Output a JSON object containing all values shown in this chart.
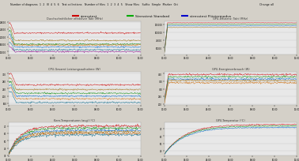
{
  "bg_color": "#d4d0c8",
  "toolbar_bg": "#ece9d8",
  "chart_bg": "#f0f0f0",
  "chart_plot_bg": "#e8e8e8",
  "legend_items": [
    {
      "label": "stresstest",
      "color": "#cc0000"
    },
    {
      "label": "Stresstest Standard",
      "color": "#00aa00"
    },
    {
      "label": "stresstest Flüstermodus",
      "color": "#0000cc"
    }
  ],
  "chart_titles": [
    "Durchschnittlicher effektiver Takt (MHz)",
    "GPU-Effizienz: Takt (MHz)",
    "CPU-Gesamt Leistungsaufnahme (W)",
    "GPU-Energieverbrauch (W)",
    "Kern-Temperaturen (avg) (°C)",
    "GPU-Temperatur (°C)"
  ],
  "toolbar_text": "Number of diagrams    1  2  III  4  5  6      Test collections      Number of files    1  2  3  4  5      Show Files      Suffix   Simple   Marker   Ort            Change all",
  "line_colors_chart0": [
    "#cc0000",
    "#996600",
    "#008800",
    "#0066cc",
    "#cc6600",
    "#006688",
    "#880088"
  ],
  "line_colors_chart1": [
    "#cc0000",
    "#008800",
    "#0066cc",
    "#996600"
  ],
  "line_colors_chart2": [
    "#cc0000",
    "#996600",
    "#008800",
    "#0066cc",
    "#cc6600",
    "#006688"
  ],
  "line_colors_chart3": [
    "#cc0000",
    "#008800",
    "#0066cc",
    "#996600",
    "#cc6600"
  ],
  "line_colors_chart4": [
    "#cc0000",
    "#008800",
    "#0066cc",
    "#996600",
    "#cc6600",
    "#006688"
  ],
  "line_colors_chart5": [
    "#cc0000",
    "#008800",
    "#0066cc"
  ],
  "n_points": 300
}
